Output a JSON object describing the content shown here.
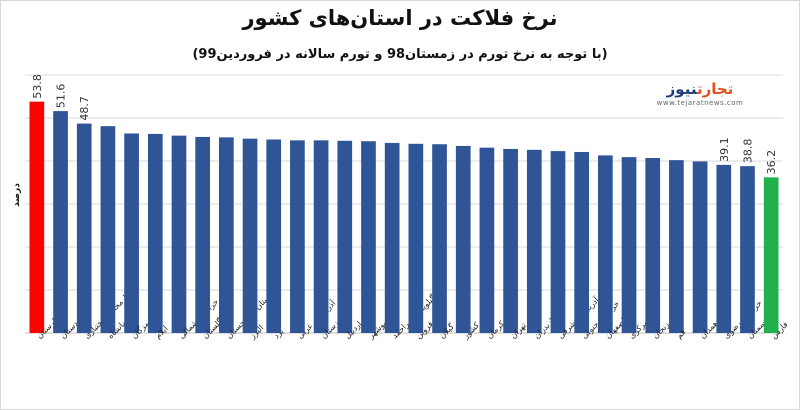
{
  "title": "نرخ فلاکت در استان‌های کشور",
  "subtitle": "(با توجه به نرخ تورم در زمستان98 و تورم سالانه در فروردین99)",
  "logo": {
    "brand_part1": "تجارت",
    "brand_part2": "نیوز",
    "site": "www.tejaratnews.com"
  },
  "colors": {
    "default": "#2f5597",
    "highest": "#ff0000",
    "lowest": "#21b04b",
    "grid": "#d9d9d9"
  },
  "chart_data": {
    "type": "bar",
    "ylabel": "درصد",
    "xlabel": "",
    "ylim": [
      0,
      60
    ],
    "grid": true,
    "categories": [
      "لرستان",
      "کردستان",
      "چهارمحال و بختیاری",
      "کرمانشاه",
      "هرمزگان",
      "ایلام",
      "خراسان شمالی",
      "گلستان",
      "سیستان و بلوچستان",
      "البرز",
      "یزد",
      "آذربایجان غربی",
      "خوزستان",
      "اردبیل",
      "بوشهر",
      "کهگیلویه و بویراحمد",
      "قزوین",
      "گیلان",
      "کشور",
      "کرمان",
      "تهران",
      "مازندران",
      "آذربایجان شرقی",
      "خراسان جنوبی",
      "اصفهان",
      "مرکزی",
      "زنجان",
      "قم",
      "همدان",
      "خراسان رضوی",
      "سمنان",
      "فارس"
    ],
    "values": [
      53.8,
      51.6,
      48.7,
      48.1,
      46.4,
      46.3,
      45.9,
      45.6,
      45.5,
      45.2,
      45.0,
      44.8,
      44.8,
      44.7,
      44.6,
      44.2,
      44.0,
      43.9,
      43.5,
      43.1,
      42.8,
      42.6,
      42.3,
      42.1,
      41.3,
      40.9,
      40.7,
      40.2,
      39.9,
      39.1,
      38.8,
      36.2
    ],
    "data_labels": [
      "53.8",
      "51.6",
      "48.7",
      "",
      "",
      "",
      "",
      "",
      "",
      "",
      "",
      "",
      "",
      "",
      "",
      "",
      "",
      "",
      "",
      "",
      "",
      "",
      "",
      "",
      "",
      "",
      "",
      "",
      "",
      "39.1",
      "38.8",
      "36.2"
    ]
  }
}
